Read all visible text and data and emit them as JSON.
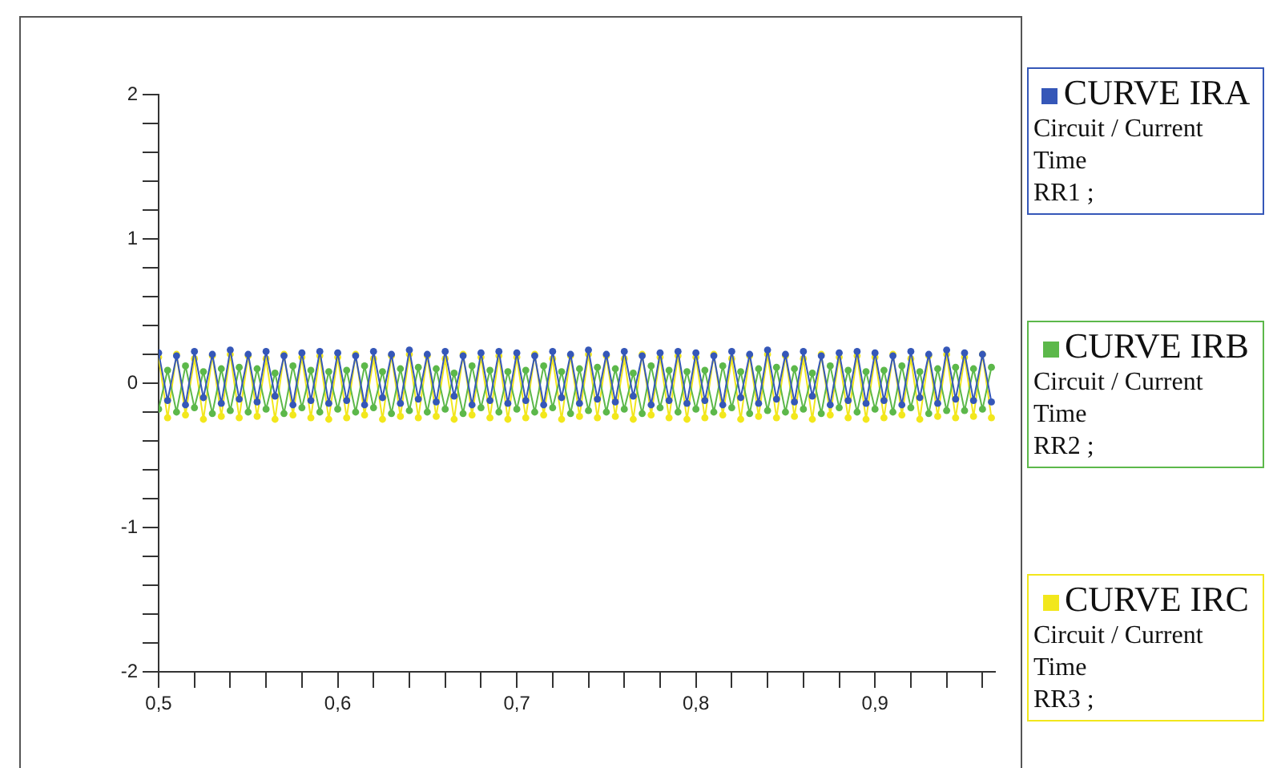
{
  "chart_data": {
    "type": "line",
    "xlabel": "Time",
    "ylabel": "Circuit / Current",
    "annotations": [
      "RR1 ;",
      "RR2 ;",
      "RR3 ;"
    ],
    "x": [
      0.5,
      0.505,
      0.51,
      0.515,
      0.52,
      0.525,
      0.53,
      0.535,
      0.54,
      0.545,
      0.55,
      0.555,
      0.56,
      0.565,
      0.57,
      0.575,
      0.58,
      0.585,
      0.59,
      0.595,
      0.6,
      0.605,
      0.61,
      0.615,
      0.62,
      0.625,
      0.63,
      0.635,
      0.64,
      0.645,
      0.65,
      0.655,
      0.66,
      0.665,
      0.67,
      0.675,
      0.68,
      0.685,
      0.69,
      0.695,
      0.7,
      0.705,
      0.71,
      0.715,
      0.72,
      0.725,
      0.73,
      0.735,
      0.74,
      0.745,
      0.75,
      0.755,
      0.76,
      0.765,
      0.77,
      0.775,
      0.78,
      0.785,
      0.79,
      0.795,
      0.8,
      0.805,
      0.81,
      0.815,
      0.82,
      0.825,
      0.83,
      0.835,
      0.84,
      0.845,
      0.85,
      0.855,
      0.86,
      0.865,
      0.87,
      0.875,
      0.88,
      0.885,
      0.89,
      0.895,
      0.9,
      0.905,
      0.91,
      0.915,
      0.92,
      0.925,
      0.93,
      0.935,
      0.94,
      0.945,
      0.95,
      0.955,
      0.96,
      0.965
    ],
    "series": [
      {
        "name": "CURVE IRA",
        "color": "#3557b8",
        "values": [
          0.21,
          -0.12,
          0.19,
          -0.15,
          0.22,
          -0.1,
          0.2,
          -0.14,
          0.23,
          -0.11,
          0.2,
          -0.13,
          0.22,
          -0.09,
          0.19,
          -0.15,
          0.21,
          -0.12,
          0.22,
          -0.14,
          0.21,
          -0.12,
          0.19,
          -0.15,
          0.22,
          -0.1,
          0.2,
          -0.14,
          0.23,
          -0.11,
          0.2,
          -0.13,
          0.22,
          -0.09,
          0.19,
          -0.15,
          0.21,
          -0.12,
          0.22,
          -0.14,
          0.21,
          -0.12,
          0.19,
          -0.15,
          0.22,
          -0.1,
          0.2,
          -0.14,
          0.23,
          -0.11,
          0.2,
          -0.13,
          0.22,
          -0.09,
          0.19,
          -0.15,
          0.21,
          -0.12,
          0.22,
          -0.14,
          0.21,
          -0.12,
          0.19,
          -0.15,
          0.22,
          -0.1,
          0.2,
          -0.14,
          0.23,
          -0.11,
          0.2,
          -0.13,
          0.22,
          -0.09,
          0.19,
          -0.15,
          0.21,
          -0.12,
          0.22,
          -0.14,
          0.21,
          -0.12,
          0.19,
          -0.15,
          0.22,
          -0.1,
          0.2,
          -0.14,
          0.23,
          -0.11,
          0.21,
          -0.12,
          0.2,
          -0.13
        ]
      },
      {
        "name": "CURVE IRB",
        "color": "#5cb84a",
        "values": [
          -0.18,
          0.09,
          -0.2,
          0.12,
          -0.17,
          0.08,
          -0.21,
          0.1,
          -0.19,
          0.11,
          -0.2,
          0.1,
          -0.18,
          0.07,
          -0.21,
          0.12,
          -0.17,
          0.09,
          -0.2,
          0.08,
          -0.18,
          0.09,
          -0.2,
          0.12,
          -0.17,
          0.08,
          -0.21,
          0.1,
          -0.19,
          0.11,
          -0.2,
          0.1,
          -0.18,
          0.07,
          -0.21,
          0.12,
          -0.17,
          0.09,
          -0.2,
          0.08,
          -0.18,
          0.09,
          -0.2,
          0.12,
          -0.17,
          0.08,
          -0.21,
          0.1,
          -0.19,
          0.11,
          -0.2,
          0.1,
          -0.18,
          0.07,
          -0.21,
          0.12,
          -0.17,
          0.09,
          -0.2,
          0.08,
          -0.18,
          0.09,
          -0.2,
          0.12,
          -0.17,
          0.08,
          -0.21,
          0.1,
          -0.19,
          0.11,
          -0.2,
          0.1,
          -0.18,
          0.07,
          -0.21,
          0.12,
          -0.17,
          0.09,
          -0.2,
          0.08,
          -0.18,
          0.09,
          -0.2,
          0.12,
          -0.17,
          0.08,
          -0.21,
          0.1,
          -0.19,
          0.11,
          -0.19,
          0.1,
          -0.18,
          0.11
        ]
      },
      {
        "name": "CURVE IRC",
        "color": "#f2e71c",
        "values": [
          0.18,
          -0.24,
          0.2,
          -0.22,
          0.17,
          -0.25,
          0.19,
          -0.23,
          0.2,
          -0.24,
          0.19,
          -0.23,
          0.17,
          -0.25,
          0.2,
          -0.22,
          0.18,
          -0.24,
          0.19,
          -0.25,
          0.18,
          -0.24,
          0.2,
          -0.22,
          0.17,
          -0.25,
          0.19,
          -0.23,
          0.2,
          -0.24,
          0.19,
          -0.23,
          0.17,
          -0.25,
          0.2,
          -0.22,
          0.18,
          -0.24,
          0.19,
          -0.25,
          0.18,
          -0.24,
          0.2,
          -0.22,
          0.17,
          -0.25,
          0.19,
          -0.23,
          0.2,
          -0.24,
          0.19,
          -0.23,
          0.17,
          -0.25,
          0.2,
          -0.22,
          0.18,
          -0.24,
          0.19,
          -0.25,
          0.18,
          -0.24,
          0.2,
          -0.22,
          0.17,
          -0.25,
          0.19,
          -0.23,
          0.2,
          -0.24,
          0.19,
          -0.23,
          0.17,
          -0.25,
          0.2,
          -0.22,
          0.18,
          -0.24,
          0.19,
          -0.25,
          0.18,
          -0.24,
          0.2,
          -0.22,
          0.17,
          -0.25,
          0.19,
          -0.23,
          0.2,
          -0.24,
          0.18,
          -0.23,
          0.2,
          -0.24
        ]
      }
    ],
    "xlim": [
      0.5,
      0.967
    ],
    "ylim": [
      -2,
      2
    ],
    "xticks": [
      {
        "value": 0.5,
        "label": "0,5"
      },
      {
        "value": 0.52,
        "label": null
      },
      {
        "value": 0.54,
        "label": null
      },
      {
        "value": 0.56,
        "label": null
      },
      {
        "value": 0.58,
        "label": null
      },
      {
        "value": 0.6,
        "label": "0,6"
      },
      {
        "value": 0.62,
        "label": null
      },
      {
        "value": 0.64,
        "label": null
      },
      {
        "value": 0.66,
        "label": null
      },
      {
        "value": 0.68,
        "label": null
      },
      {
        "value": 0.7,
        "label": "0,7"
      },
      {
        "value": 0.72,
        "label": null
      },
      {
        "value": 0.74,
        "label": null
      },
      {
        "value": 0.76,
        "label": null
      },
      {
        "value": 0.78,
        "label": null
      },
      {
        "value": 0.8,
        "label": "0,8"
      },
      {
        "value": 0.82,
        "label": null
      },
      {
        "value": 0.84,
        "label": null
      },
      {
        "value": 0.86,
        "label": null
      },
      {
        "value": 0.88,
        "label": null
      },
      {
        "value": 0.9,
        "label": "0,9"
      },
      {
        "value": 0.92,
        "label": null
      },
      {
        "value": 0.94,
        "label": null
      },
      {
        "value": 0.96,
        "label": null
      }
    ],
    "yticks": [
      -2,
      {
        "value": -1.8,
        "label": null
      },
      {
        "value": -1.6,
        "label": null
      },
      {
        "value": -1.4,
        "label": null
      },
      {
        "value": -1.2,
        "label": null
      },
      -1,
      {
        "value": -0.8,
        "label": null
      },
      {
        "value": -0.6,
        "label": null
      },
      {
        "value": -0.4,
        "label": null
      },
      {
        "value": -0.2,
        "label": null
      },
      0,
      {
        "value": 0.2,
        "label": null
      },
      {
        "value": 0.4,
        "label": null
      },
      {
        "value": 0.6,
        "label": null
      },
      {
        "value": 0.8,
        "label": null
      },
      1,
      {
        "value": 1.2,
        "label": null
      },
      {
        "value": 1.4,
        "label": null
      },
      {
        "value": 1.6,
        "label": null
      },
      {
        "value": 1.8,
        "label": null
      },
      2
    ],
    "legend": "right",
    "marker": "circle",
    "line_style": "solid"
  }
}
